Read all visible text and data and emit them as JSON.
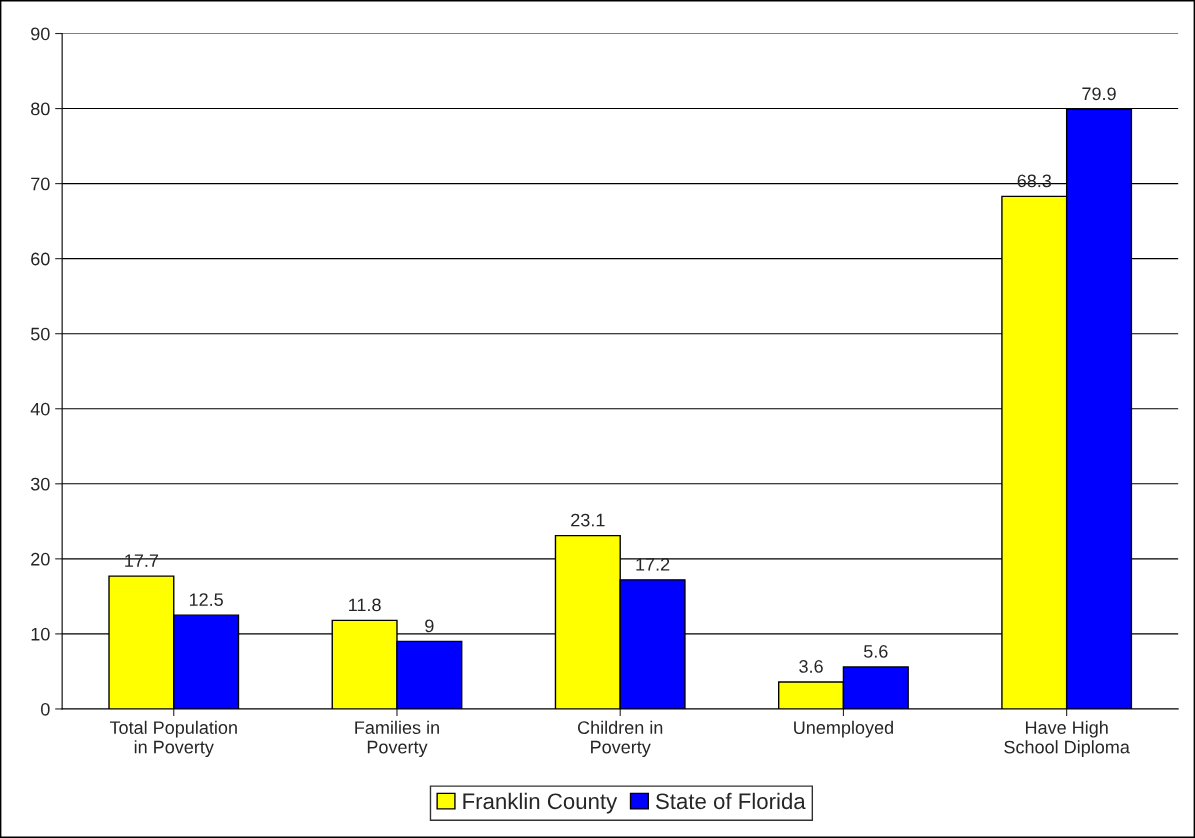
{
  "chart_data": {
    "type": "bar",
    "categories": [
      "Total Population\nin Poverty",
      "Families in\nPoverty",
      "Children in\nPoverty",
      "Unemployed",
      "Have High\nSchool Diploma"
    ],
    "series": [
      {
        "name": "Franklin County",
        "color": "#ffff00",
        "values": [
          17.7,
          11.8,
          23.1,
          3.6,
          68.3
        ]
      },
      {
        "name": "State of Florida",
        "color": "#0000ff",
        "values": [
          12.5,
          9,
          17.2,
          5.6,
          79.9
        ]
      }
    ],
    "ylim": [
      0,
      90
    ],
    "yticks": [
      0,
      10,
      20,
      30,
      40,
      50,
      60,
      70,
      80,
      90
    ],
    "grid": "y",
    "legend": "bottom",
    "data_labels": true
  }
}
